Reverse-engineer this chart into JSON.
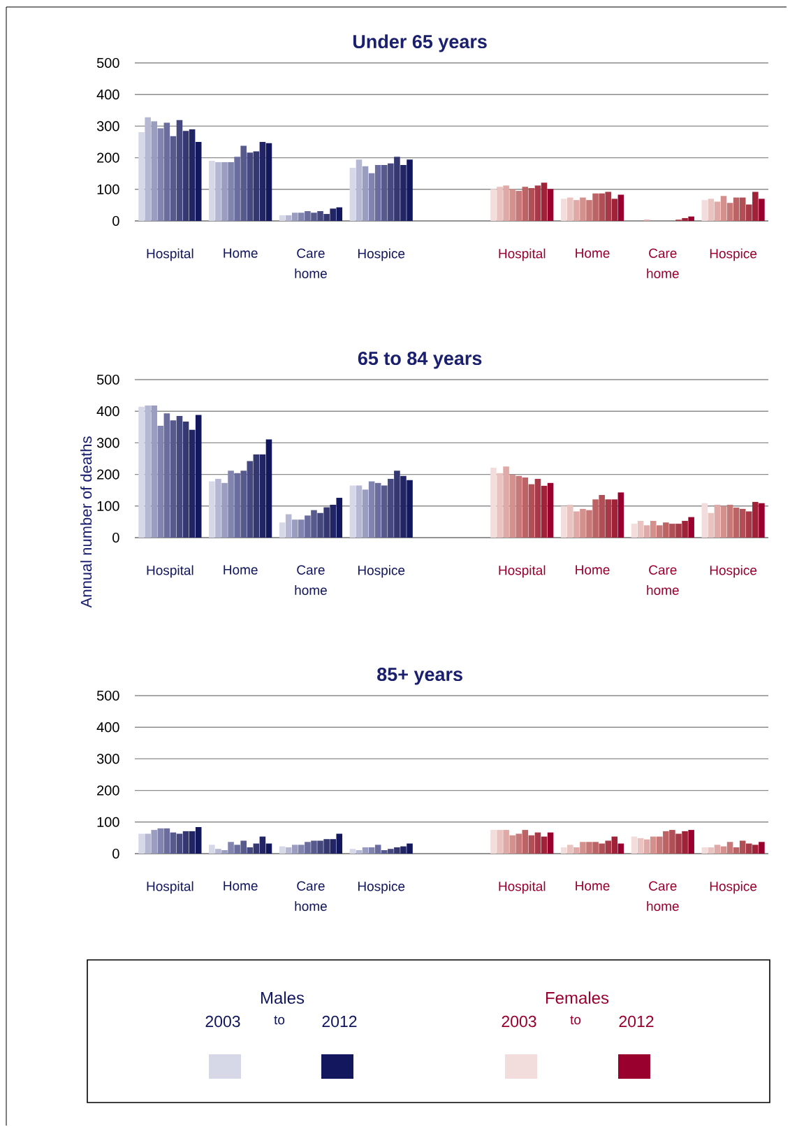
{
  "chart_data": [
    {
      "type": "bar",
      "title": "Under 65 years",
      "categories": [
        "Hospital",
        "Home",
        "Care home",
        "Hospice",
        "Hospital",
        "Home",
        "Care home",
        "Hospice"
      ],
      "ylim": [
        0,
        500
      ],
      "yticks": [
        0,
        100,
        200,
        300,
        400,
        500
      ],
      "grid": "y",
      "series": [
        {
          "colors": [
            "#d6d8e8",
            "#d6d8e8",
            "#d6d8e8",
            "#d6d8e8",
            "#f2dcdc",
            "#f2dcdc",
            "#f2dcdc",
            "#f2dcdc"
          ],
          "values": [
            281,
            190,
            18,
            168,
            101,
            70,
            0,
            66
          ]
        },
        {
          "colors": [
            "#b6b8d3",
            "#b6b8d3",
            "#b6b8d3",
            "#b6b8d3",
            "#e8c3c0",
            "#e8c3c0",
            "#e8c3c0",
            "#e8c3c0"
          ],
          "values": [
            328,
            186,
            18,
            194,
            108,
            74,
            0,
            70
          ]
        },
        {
          "colors": [
            "#9a9dc0",
            "#9a9dc0",
            "#9a9dc0",
            "#9a9dc0",
            "#dea9a6",
            "#dea9a6",
            "#dea9a6",
            "#dea9a6"
          ],
          "values": [
            315,
            186,
            26,
            173,
            112,
            66,
            4,
            61
          ]
        },
        {
          "colors": [
            "#8184ae",
            "#8184ae",
            "#8184ae",
            "#8184ae",
            "#d4908d",
            "#d4908d",
            "#d4908d",
            "#d4908d"
          ],
          "values": [
            293,
            186,
            26,
            151,
            101,
            74,
            0,
            79
          ]
        },
        {
          "colors": [
            "#6a6d9e",
            "#6a6d9e",
            "#6a6d9e",
            "#6a6d9e",
            "#c77878",
            "#c77878",
            "#c77878",
            "#c77878"
          ],
          "values": [
            311,
            203,
            31,
            177,
            95,
            66,
            0,
            57
          ]
        },
        {
          "colors": [
            "#575a8d",
            "#575a8d",
            "#575a8d",
            "#575a8d",
            "#bc6465",
            "#bc6465",
            "#bc6465",
            "#bc6465"
          ],
          "values": [
            268,
            238,
            26,
            177,
            108,
            87,
            0,
            74
          ]
        },
        {
          "colors": [
            "#46497f",
            "#46497f",
            "#46497f",
            "#46497f",
            "#b04f55",
            "#b04f55",
            "#b04f55",
            "#b04f55"
          ],
          "values": [
            319,
            216,
            31,
            182,
            104,
            87,
            0,
            74
          ]
        },
        {
          "colors": [
            "#343770",
            "#343770",
            "#343770",
            "#343770",
            "#a73a48",
            "#a73a48",
            "#a73a48",
            "#a73a48"
          ],
          "values": [
            285,
            220,
            22,
            203,
            112,
            92,
            4,
            52
          ]
        },
        {
          "colors": [
            "#222565",
            "#222565",
            "#222565",
            "#222565",
            "#a02238",
            "#a02238",
            "#a02238",
            "#a02238"
          ],
          "values": [
            290,
            250,
            39,
            177,
            121,
            70,
            9,
            92
          ]
        },
        {
          "colors": [
            "#12175e",
            "#12175e",
            "#12175e",
            "#12175e",
            "#99002e",
            "#99002e",
            "#99002e",
            "#99002e"
          ],
          "values": [
            250,
            246,
            43,
            194,
            101,
            83,
            14,
            70
          ]
        }
      ]
    },
    {
      "type": "bar",
      "title": "65 to 84 years",
      "ylabel": "Annual number of deaths",
      "categories": [
        "Hospital",
        "Home",
        "Care home",
        "Hospice",
        "Hospital",
        "Home",
        "Care home",
        "Hospice"
      ],
      "ylim": [
        0,
        500
      ],
      "yticks": [
        0,
        100,
        200,
        300,
        400,
        500
      ],
      "grid": "y",
      "series": [
        {
          "colors": [
            "#d6d8e8",
            "#d6d8e8",
            "#d6d8e8",
            "#d6d8e8",
            "#f2dcdc",
            "#f2dcdc",
            "#f2dcdc",
            "#f2dcdc"
          ],
          "values": [
            414,
            178,
            48,
            165,
            221,
            100,
            44,
            109
          ]
        },
        {
          "colors": [
            "#b6b8d3",
            "#b6b8d3",
            "#b6b8d3",
            "#b6b8d3",
            "#e8c3c0",
            "#e8c3c0",
            "#e8c3c0",
            "#e8c3c0"
          ],
          "values": [
            418,
            186,
            74,
            165,
            204,
            104,
            53,
            78
          ]
        },
        {
          "colors": [
            "#9a9dc0",
            "#9a9dc0",
            "#9a9dc0",
            "#9a9dc0",
            "#dea9a6",
            "#dea9a6",
            "#dea9a6",
            "#dea9a6"
          ],
          "values": [
            418,
            173,
            57,
            152,
            225,
            83,
            39,
            104
          ]
        },
        {
          "colors": [
            "#8184ae",
            "#8184ae",
            "#8184ae",
            "#8184ae",
            "#d4908d",
            "#d4908d",
            "#d4908d",
            "#d4908d"
          ],
          "values": [
            354,
            212,
            57,
            178,
            199,
            91,
            53,
            100
          ]
        },
        {
          "colors": [
            "#6a6d9e",
            "#6a6d9e",
            "#6a6d9e",
            "#6a6d9e",
            "#c77878",
            "#c77878",
            "#c77878",
            "#c77878"
          ],
          "values": [
            393,
            204,
            70,
            173,
            195,
            87,
            39,
            104
          ]
        },
        {
          "colors": [
            "#575a8d",
            "#575a8d",
            "#575a8d",
            "#575a8d",
            "#bc6465",
            "#bc6465",
            "#bc6465",
            "#bc6465"
          ],
          "values": [
            371,
            212,
            87,
            165,
            190,
            121,
            48,
            95
          ]
        },
        {
          "colors": [
            "#46497f",
            "#46497f",
            "#46497f",
            "#46497f",
            "#b04f55",
            "#b04f55",
            "#b04f55",
            "#b04f55"
          ],
          "values": [
            385,
            242,
            78,
            186,
            169,
            135,
            44,
            91
          ]
        },
        {
          "colors": [
            "#343770",
            "#343770",
            "#343770",
            "#343770",
            "#a73a48",
            "#a73a48",
            "#a73a48",
            "#a73a48"
          ],
          "values": [
            367,
            263,
            96,
            212,
            186,
            121,
            44,
            83
          ]
        },
        {
          "colors": [
            "#222565",
            "#222565",
            "#222565",
            "#222565",
            "#a02238",
            "#a02238",
            "#a02238",
            "#a02238"
          ],
          "values": [
            341,
            263,
            104,
            195,
            164,
            121,
            53,
            113
          ]
        },
        {
          "colors": [
            "#12175e",
            "#12175e",
            "#12175e",
            "#12175e",
            "#99002e",
            "#99002e",
            "#99002e",
            "#99002e"
          ],
          "values": [
            388,
            311,
            126,
            182,
            173,
            143,
            65,
            109
          ]
        }
      ]
    },
    {
      "type": "bar",
      "title": "85+ years",
      "categories": [
        "Hospital",
        "Home",
        "Care home",
        "Hospice",
        "Hospital",
        "Home",
        "Care home",
        "Hospice"
      ],
      "ylim": [
        0,
        500
      ],
      "yticks": [
        0,
        100,
        200,
        300,
        400,
        500
      ],
      "grid": "y",
      "annotations": [
        "Males",
        "2003",
        "to",
        "2012",
        "Females",
        "2003",
        "to",
        "2012"
      ],
      "series": [
        {
          "colors": [
            "#d6d8e8",
            "#d6d8e8",
            "#d6d8e8",
            "#d6d8e8",
            "#f2dcdc",
            "#f2dcdc",
            "#f2dcdc",
            "#f2dcdc"
          ],
          "values": [
            63,
            28,
            23,
            15,
            75,
            20,
            54,
            20
          ]
        },
        {
          "colors": [
            "#b6b8d3",
            "#b6b8d3",
            "#b6b8d3",
            "#b6b8d3",
            "#e8c3c0",
            "#e8c3c0",
            "#e8c3c0",
            "#e8c3c0"
          ],
          "values": [
            63,
            15,
            20,
            11,
            75,
            28,
            49,
            20
          ]
        },
        {
          "colors": [
            "#9a9dc0",
            "#9a9dc0",
            "#9a9dc0",
            "#9a9dc0",
            "#dea9a6",
            "#dea9a6",
            "#dea9a6",
            "#dea9a6"
          ],
          "values": [
            75,
            11,
            28,
            20,
            75,
            20,
            45,
            28
          ]
        },
        {
          "colors": [
            "#8184ae",
            "#8184ae",
            "#8184ae",
            "#8184ae",
            "#d4908d",
            "#d4908d",
            "#d4908d",
            "#d4908d"
          ],
          "values": [
            80,
            37,
            28,
            20,
            58,
            37,
            54,
            23
          ]
        },
        {
          "colors": [
            "#6a6d9e",
            "#6a6d9e",
            "#6a6d9e",
            "#6a6d9e",
            "#c77878",
            "#c77878",
            "#c77878",
            "#c77878"
          ],
          "values": [
            80,
            28,
            37,
            28,
            63,
            37,
            54,
            37
          ]
        },
        {
          "colors": [
            "#575a8d",
            "#575a8d",
            "#575a8d",
            "#575a8d",
            "#bc6465",
            "#bc6465",
            "#bc6465",
            "#bc6465"
          ],
          "values": [
            67,
            41,
            41,
            11,
            75,
            37,
            71,
            20
          ]
        },
        {
          "colors": [
            "#46497f",
            "#46497f",
            "#46497f",
            "#46497f",
            "#b04f55",
            "#b04f55",
            "#b04f55",
            "#b04f55"
          ],
          "values": [
            63,
            20,
            41,
            15,
            58,
            32,
            75,
            41
          ]
        },
        {
          "colors": [
            "#343770",
            "#343770",
            "#343770",
            "#343770",
            "#a73a48",
            "#a73a48",
            "#a73a48",
            "#a73a48"
          ],
          "values": [
            71,
            32,
            46,
            20,
            67,
            41,
            63,
            32
          ]
        },
        {
          "colors": [
            "#222565",
            "#222565",
            "#222565",
            "#222565",
            "#a02238",
            "#a02238",
            "#a02238",
            "#a02238"
          ],
          "values": [
            71,
            54,
            46,
            23,
            54,
            54,
            71,
            28
          ]
        },
        {
          "colors": [
            "#12175e",
            "#12175e",
            "#12175e",
            "#12175e",
            "#99002e",
            "#99002e",
            "#99002e",
            "#99002e"
          ],
          "values": [
            84,
            32,
            63,
            32,
            67,
            32,
            75,
            37
          ]
        }
      ]
    }
  ]
}
